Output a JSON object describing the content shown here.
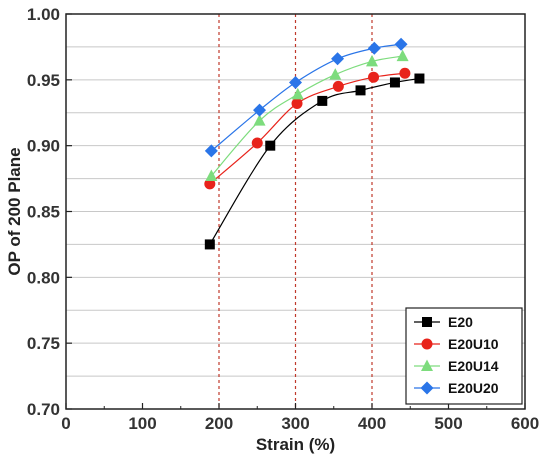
{
  "chart_data": {
    "type": "scatter",
    "xlabel": "Strain (%)",
    "ylabel": "OP of 200 Plane",
    "xlim": [
      0,
      600
    ],
    "ylim": [
      0.7,
      1.0
    ],
    "xticks": [
      "0",
      "100",
      "200",
      "300",
      "400",
      "500",
      "600"
    ],
    "yticks": [
      "0.70",
      "0.75",
      "0.80",
      "0.85",
      "0.90",
      "0.95",
      "1.00"
    ],
    "x_tick_values": [
      0,
      100,
      200,
      300,
      400,
      500,
      600
    ],
    "y_tick_values": [
      0.7,
      0.75,
      0.8,
      0.85,
      0.9,
      0.95,
      1.0
    ],
    "grid": "horizontal gray lines",
    "reference_lines_x": [
      200,
      300,
      400
    ],
    "reference_line_color": "#c0392b",
    "legend_position": "bottom-right",
    "series": [
      {
        "name": "E20",
        "marker": "square",
        "color": "#000000",
        "x": [
          188,
          267,
          335,
          385,
          430,
          462
        ],
        "y": [
          0.825,
          0.9,
          0.934,
          0.942,
          0.948,
          0.951
        ]
      },
      {
        "name": "E20U10",
        "marker": "circle",
        "color": "#e8231b",
        "x": [
          188,
          250,
          302,
          356,
          402,
          443
        ],
        "y": [
          0.871,
          0.902,
          0.932,
          0.945,
          0.952,
          0.955
        ]
      },
      {
        "name": "E20U14",
        "marker": "triangle",
        "color": "#7ddc7d",
        "x": [
          190,
          253,
          303,
          352,
          400,
          440
        ],
        "y": [
          0.877,
          0.919,
          0.939,
          0.954,
          0.964,
          0.968
        ]
      },
      {
        "name": "E20U20",
        "marker": "diamond",
        "color": "#2a75e8",
        "x": [
          190,
          253,
          300,
          355,
          403,
          438
        ],
        "y": [
          0.896,
          0.927,
          0.948,
          0.966,
          0.974,
          0.977
        ]
      }
    ]
  }
}
